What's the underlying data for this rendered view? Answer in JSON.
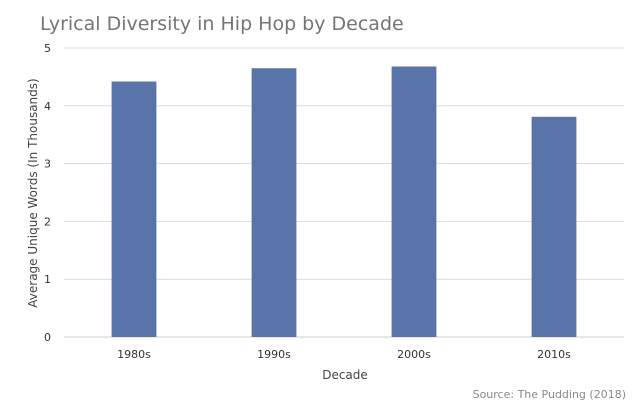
{
  "chart_data": {
    "type": "bar",
    "title": "Lyrical Diversity in Hip Hop by Decade",
    "xlabel": "Decade",
    "ylabel": "Average Unique Words (In Thousands)",
    "categories": [
      "1980s",
      "1990s",
      "2000s",
      "2010s"
    ],
    "values": [
      4.42,
      4.65,
      4.68,
      3.81
    ],
    "ylim": [
      0,
      5
    ],
    "yticks": [
      "0",
      "1",
      "2",
      "3",
      "4",
      "5"
    ],
    "grid": true,
    "legend": "none",
    "bar_color": "#5874a8",
    "source": "Source: The Pudding (2018)"
  }
}
